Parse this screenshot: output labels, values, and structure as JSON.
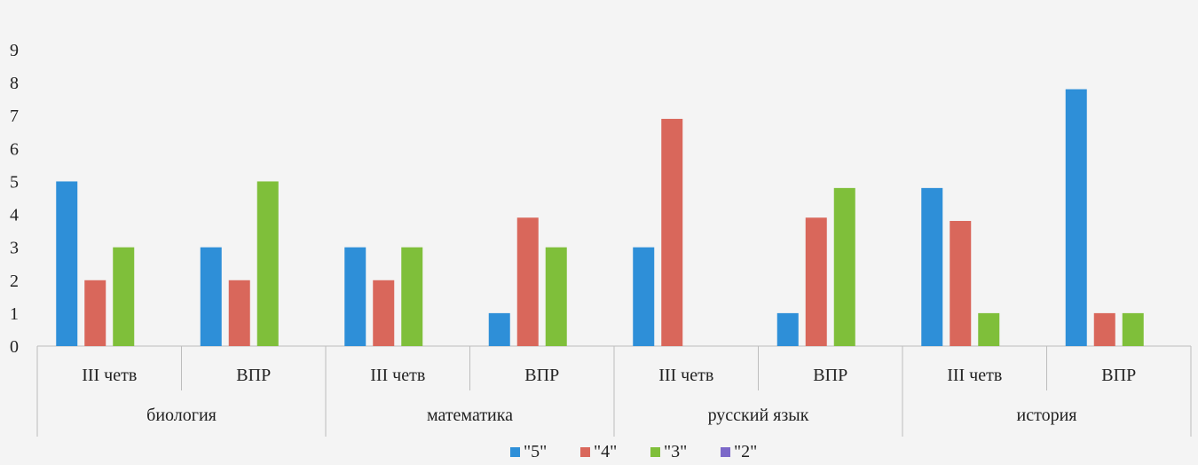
{
  "chart_data": {
    "type": "bar",
    "title": "",
    "xlabel": "",
    "ylabel": "",
    "ylim": [
      0,
      9
    ],
    "yticks": [
      0,
      1,
      2,
      3,
      4,
      5,
      6,
      7,
      8,
      9
    ],
    "grid": false,
    "legend_position": "bottom",
    "groups": [
      "биология",
      "математика",
      "русский язык",
      "история"
    ],
    "categories": [
      "III четв",
      "ВПР",
      "III четв",
      "ВПР",
      "III четв",
      "ВПР",
      "III четв",
      "ВПР"
    ],
    "series": [
      {
        "name": "\"5\"",
        "color": "#2e8fd8",
        "values": [
          5,
          3,
          3,
          1,
          3,
          1,
          4.8,
          7.8
        ]
      },
      {
        "name": "\"4\"",
        "color": "#d9675b",
        "values": [
          2,
          2,
          2,
          3.9,
          6.9,
          3.9,
          3.8,
          1
        ]
      },
      {
        "name": "\"3\"",
        "color": "#7fbf3a",
        "values": [
          3,
          5,
          3,
          3,
          0,
          4.8,
          1,
          1
        ]
      },
      {
        "name": "\"2\"",
        "color": "#7b68c8",
        "values": [
          0,
          0,
          0,
          0,
          0,
          0,
          0,
          0
        ]
      }
    ]
  }
}
